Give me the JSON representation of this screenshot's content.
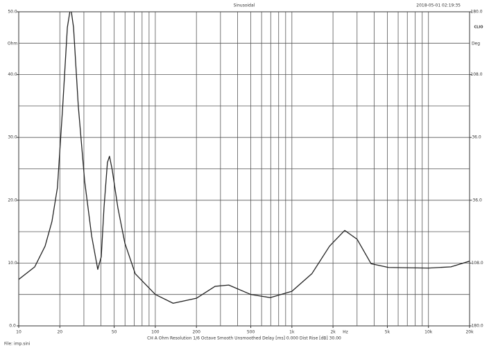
{
  "chart_data": {
    "type": "line",
    "title": "Sinusoidal",
    "timestamp": "2018-05-01 02:19:35",
    "logo": "CLIO",
    "y_unit": "Ohm",
    "y2_unit": "Deg",
    "x_unit": "Hz",
    "footer": "CH A   Ohm   Resolution 1/6 Octave   Smooth Unsmoothed   Delay [ms] 0.000   Dist Rise [dB] 30.00",
    "file": "File: imp.sini",
    "log_x": true,
    "xlim": [
      10,
      20000
    ],
    "xticks": [
      10,
      20,
      50,
      100,
      200,
      500,
      {
        "value": 1000,
        "label": "1k"
      },
      {
        "value": 2000,
        "label": "2k"
      },
      {
        "value": 5000,
        "label": "5k"
      },
      {
        "value": 10000,
        "label": "10k"
      },
      {
        "value": 20000,
        "label": "20k"
      }
    ],
    "x_grid": [
      20,
      30,
      40,
      50,
      60,
      70,
      80,
      90,
      100,
      200,
      300,
      400,
      500,
      600,
      700,
      800,
      900,
      1000,
      2000,
      3000,
      4000,
      5000,
      6000,
      7000,
      8000,
      9000,
      10000
    ],
    "ylim": [
      0,
      50
    ],
    "yticks": [
      {
        "value": 0,
        "label": "0.0"
      },
      {
        "value": 10,
        "label": "10.0"
      },
      {
        "value": 20,
        "label": "20.0"
      },
      {
        "value": 30,
        "label": "30.0"
      },
      {
        "value": 40,
        "label": "40.0"
      },
      {
        "value": 50,
        "label": "50.0"
      }
    ],
    "y_grid": [
      5,
      10,
      15,
      20,
      25,
      30,
      35,
      40,
      45
    ],
    "y2lim": [
      -180,
      180
    ],
    "y2ticks": [
      {
        "value": -180,
        "label": "-180.0"
      },
      {
        "value": -108,
        "label": "-108.0"
      },
      {
        "value": -36,
        "label": "-36.0"
      },
      {
        "value": 36,
        "label": "36.0"
      },
      {
        "value": 108,
        "label": "108.0"
      },
      {
        "value": 180,
        "label": "180.0"
      }
    ],
    "x": [
      10,
      13.1,
      15.6,
      17.5,
      19.2,
      21,
      22.7,
      24,
      25.2,
      27.3,
      30.4,
      34.2,
      37.9,
      40.2,
      42.1,
      44.6,
      46.2,
      48.4,
      53.2,
      59.8,
      71.3,
      100,
      135,
      200,
      274,
      345,
      500,
      694,
      1000,
      1400,
      1888,
      2436,
      3000,
      3800,
      5100,
      10000,
      14600,
      20000
    ],
    "series": [
      {
        "name": "Impedance",
        "color": "#222222",
        "values": [
          7.4,
          9.4,
          12.7,
          16.6,
          22,
          35,
          47.5,
          50.8,
          47.5,
          35,
          23,
          14.3,
          9.0,
          11,
          18.8,
          26,
          27,
          24.8,
          18.8,
          13.2,
          8.3,
          5.0,
          3.6,
          4.4,
          6.3,
          6.5,
          5.0,
          4.5,
          5.5,
          8.3,
          12.7,
          15.2,
          13.8,
          9.9,
          9.3,
          9.2,
          9.4,
          10.3
        ]
      }
    ]
  }
}
